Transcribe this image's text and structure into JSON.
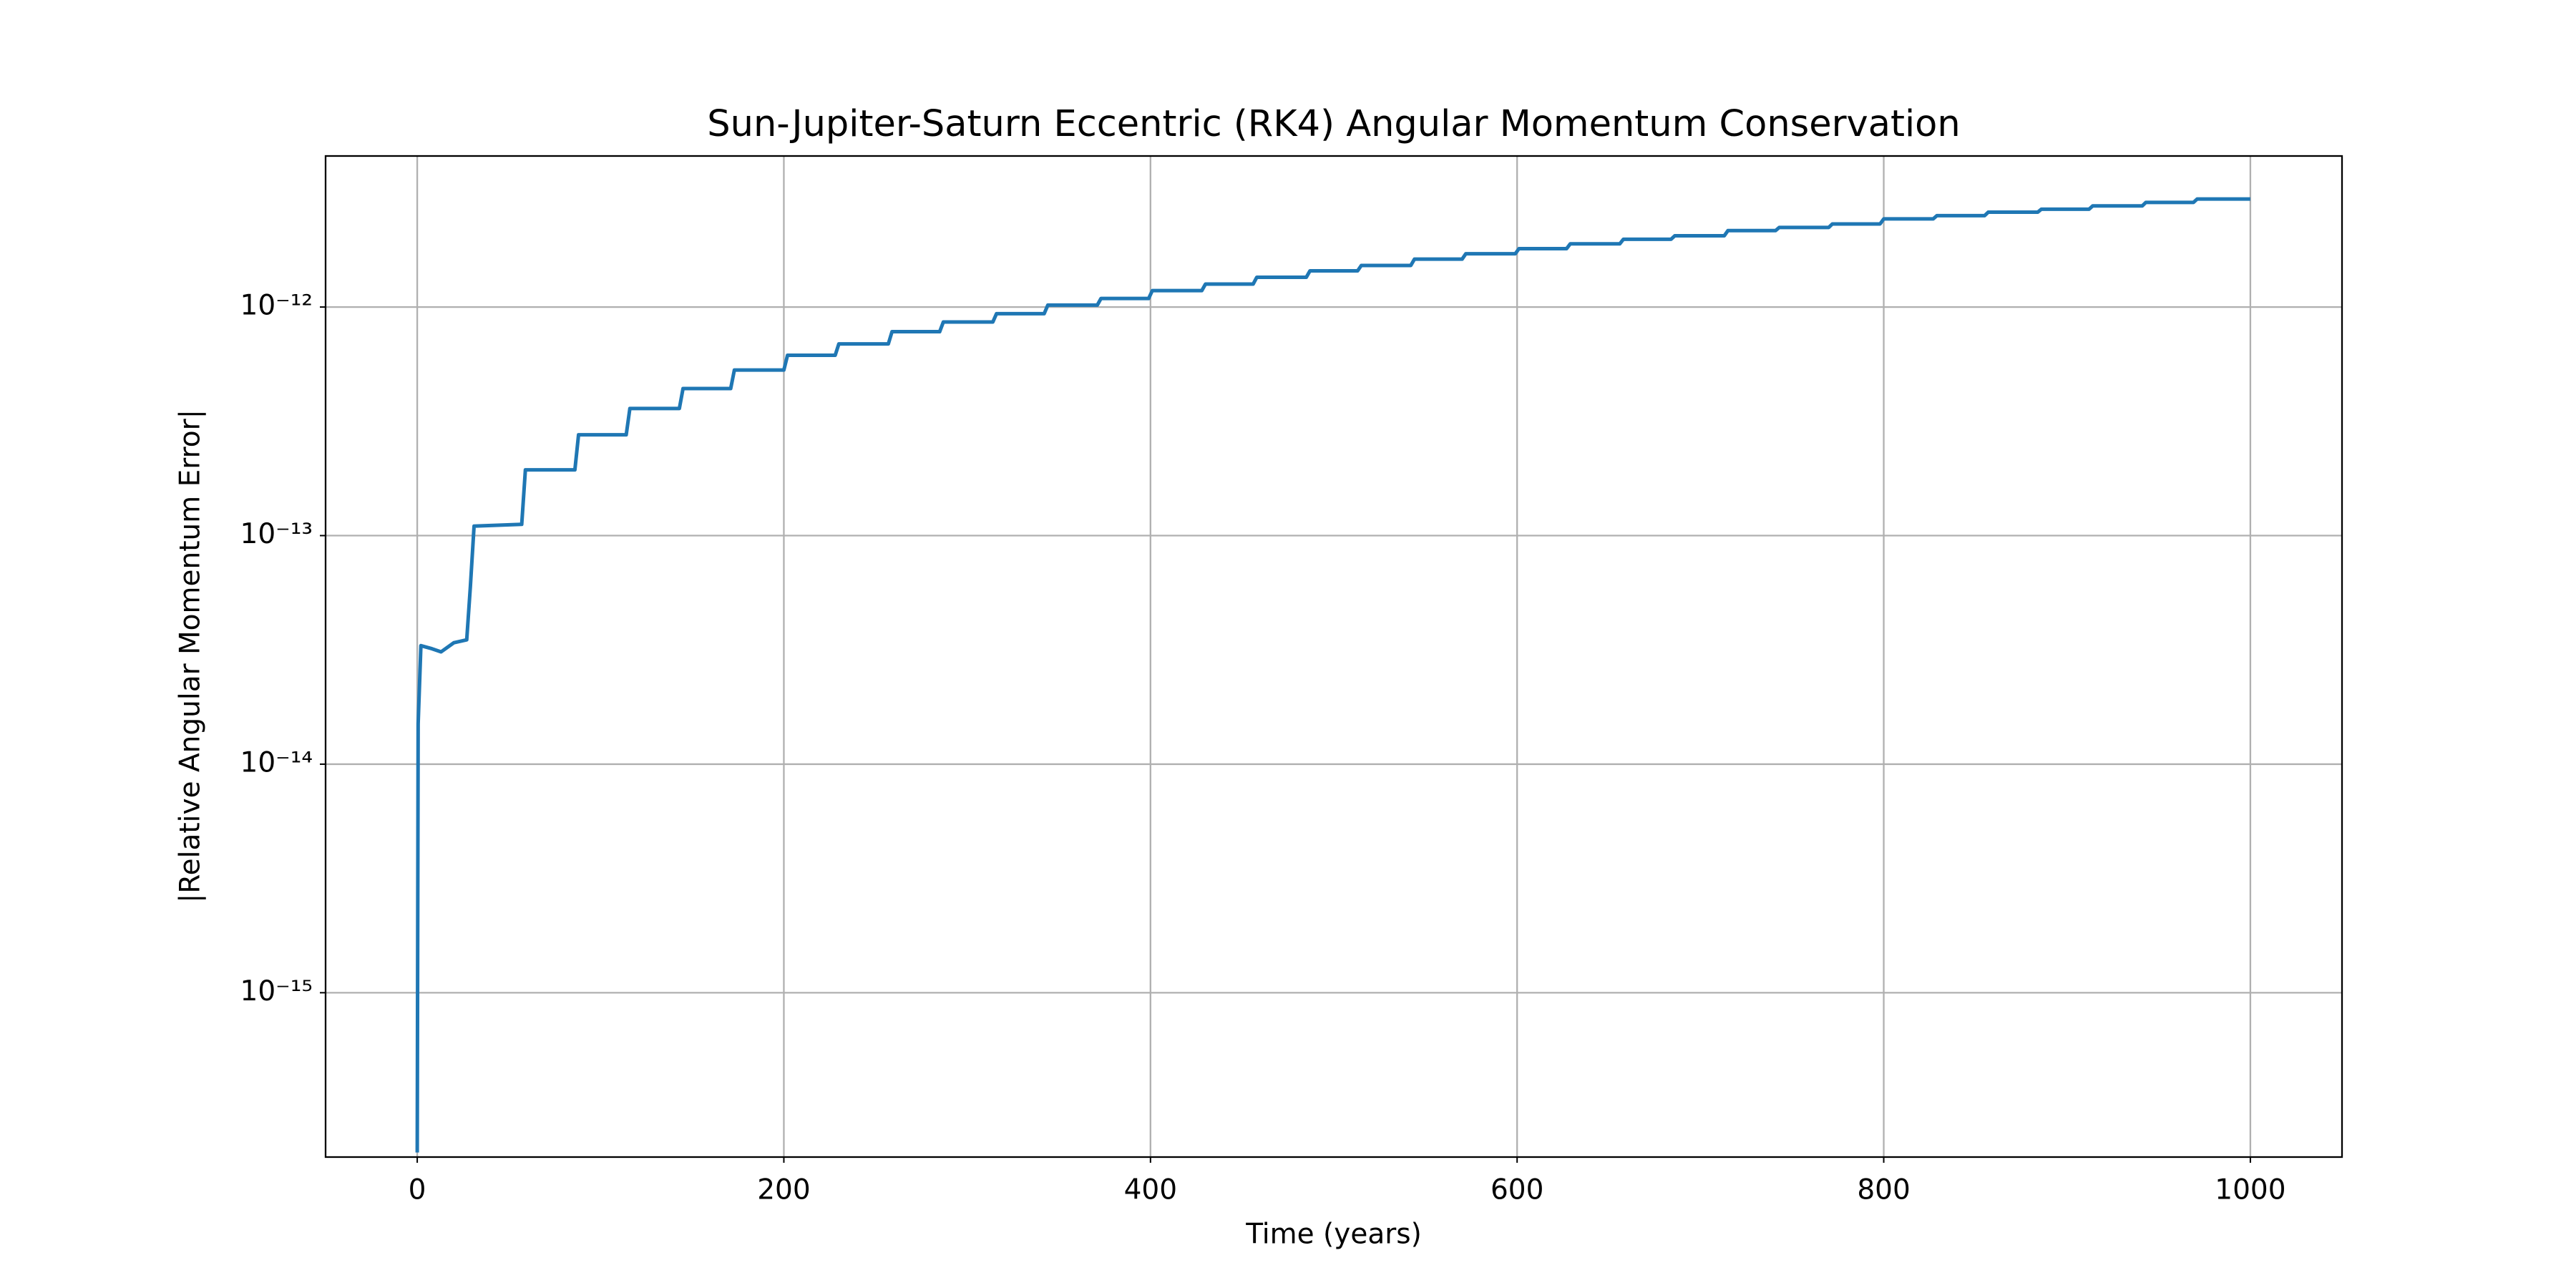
{
  "chart_data": {
    "type": "line",
    "title": "Sun-Jupiter-Saturn Eccentric (RK4) Angular Momentum Conservation",
    "xlabel": "Time (years)",
    "ylabel": "|Relative Angular Momentum Error|",
    "yscale": "log",
    "grid": true,
    "color": "#1f77b4",
    "xlim": [
      -50,
      1050
    ],
    "xticks": [
      0,
      200,
      400,
      600,
      800,
      1000
    ],
    "ylim": [
      1.91e-16,
      4.58e-12
    ],
    "yticks": [
      {
        "value": 1e-15,
        "label": "10⁻¹⁵"
      },
      {
        "value": 1e-14,
        "label": "10⁻¹⁴"
      },
      {
        "value": 1e-13,
        "label": "10⁻¹³"
      },
      {
        "value": 1e-12,
        "label": "10⁻¹²"
      }
    ],
    "x": [
      0,
      0.5,
      2,
      8,
      13,
      20,
      27,
      29,
      31,
      57,
      59,
      86,
      88,
      114,
      116,
      143,
      145,
      171,
      173,
      200,
      202,
      228,
      230,
      257,
      259,
      285,
      287,
      314,
      316,
      342,
      344,
      371,
      373,
      399,
      401,
      428,
      430,
      456,
      458,
      485,
      487,
      513,
      515,
      542,
      544,
      570,
      572,
      599,
      601,
      627,
      629,
      656,
      658,
      684,
      686,
      713,
      715,
      741,
      743,
      770,
      772,
      798,
      800,
      827,
      829,
      855,
      857,
      884,
      886,
      912,
      914,
      941,
      943,
      969,
      971,
      1000
    ],
    "values": [
      2e-16,
      1.5e-14,
      3.3e-14,
      3.2e-14,
      3.1e-14,
      3.4e-14,
      3.5e-14,
      6e-14,
      1.1e-13,
      1.12e-13,
      1.94e-13,
      1.94e-13,
      2.76e-13,
      2.76e-13,
      3.6e-13,
      3.6e-13,
      4.4e-13,
      4.4e-13,
      5.3e-13,
      5.3e-13,
      6.15e-13,
      6.15e-13,
      6.9e-13,
      6.9e-13,
      7.8e-13,
      7.8e-13,
      8.6e-13,
      8.6e-13,
      9.35e-13,
      9.35e-13,
      1.02e-12,
      1.02e-12,
      1.09e-12,
      1.09e-12,
      1.18e-12,
      1.18e-12,
      1.26e-12,
      1.26e-12,
      1.35e-12,
      1.35e-12,
      1.44e-12,
      1.44e-12,
      1.52e-12,
      1.52e-12,
      1.62e-12,
      1.62e-12,
      1.71e-12,
      1.71e-12,
      1.8e-12,
      1.8e-12,
      1.89e-12,
      1.89e-12,
      1.98e-12,
      1.98e-12,
      2.05e-12,
      2.05e-12,
      2.16e-12,
      2.16e-12,
      2.23e-12,
      2.23e-12,
      2.31e-12,
      2.31e-12,
      2.43e-12,
      2.43e-12,
      2.51e-12,
      2.51e-12,
      2.6e-12,
      2.6e-12,
      2.68e-12,
      2.68e-12,
      2.77e-12,
      2.77e-12,
      2.87e-12,
      2.87e-12,
      2.97e-12,
      2.97e-12
    ]
  }
}
